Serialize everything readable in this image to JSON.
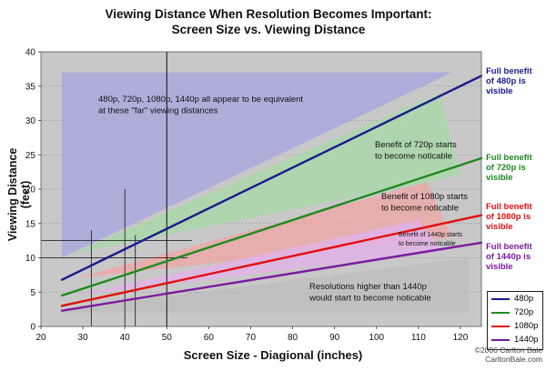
{
  "chart_data": {
    "type": "line",
    "title_line1": "Viewing Distance When Resolution Becomes Important:",
    "title_line2": "Screen Size vs. Viewing Distance",
    "xlabel": "Screen Size - Diagional (inches)",
    "ylabel": "Viewing Distance (feet)",
    "xlim": [
      20,
      125
    ],
    "ylim": [
      0,
      40
    ],
    "x_ticks": [
      "20",
      "30",
      "40",
      "50",
      "60",
      "70",
      "80",
      "90",
      "100",
      "110",
      "120"
    ],
    "y_ticks": [
      "0",
      "5",
      "10",
      "15",
      "20",
      "25",
      "30",
      "35",
      "40"
    ],
    "x": [
      25,
      125
    ],
    "series": [
      {
        "name": "480p",
        "color": "#1a1a8c",
        "values": [
          6.8,
          36.5
        ]
      },
      {
        "name": "720p",
        "color": "#1f8a1f",
        "values": [
          4.5,
          24.5
        ]
      },
      {
        "name": "1080p",
        "color": "#e01010",
        "values": [
          3.0,
          16.2
        ]
      },
      {
        "name": "1440p",
        "color": "#7b1aa0",
        "values": [
          2.3,
          12.2
        ]
      }
    ],
    "grid": true,
    "legend_position": "bottom-right"
  },
  "annotations": {
    "far_line1": "480p, 720p, 1080p, 1440p all appear to be equivalent",
    "far_line2": "at these \"far\" viewing distances",
    "b720_line1": "Benefit of 720p starts",
    "b720_line2": "to become noticable",
    "b1080_line1": "Benefit of 1080p starts",
    "b1080_line2": "to become noticable",
    "b1440_line1": "Benefit of 1440p starts",
    "b1440_line2": "to become noticable",
    "higher_line1": "Resolutions higher than 1440p",
    "higher_line2": "would start to become noticable"
  },
  "right_labels": {
    "r480": [
      "Full benefit",
      "of 480p is",
      "visible"
    ],
    "r720": [
      "Full benefit",
      "of 720p is",
      "visible"
    ],
    "r1080": [
      "Full benefit",
      "of 1080p is",
      "visible"
    ],
    "r1440": [
      "Full benefit",
      "of 1440p is",
      "visible"
    ]
  },
  "copyright": {
    "line1": "©2006 Carlton Bale",
    "line2": "CarltonBale.com"
  }
}
